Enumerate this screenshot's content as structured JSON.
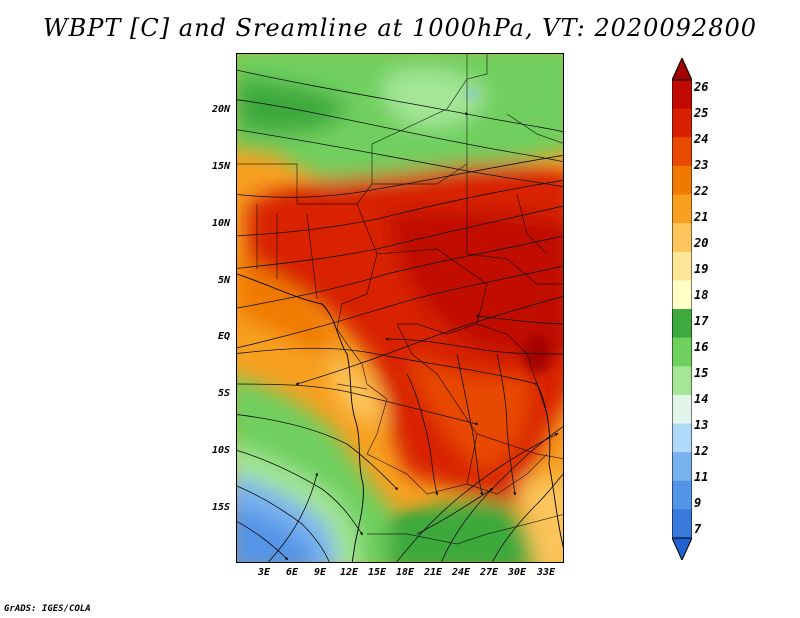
{
  "title": "WBPT [C] and Sreamline at 1000hPa, VT: 2020092800",
  "footer": "GrADS: IGES/COLA",
  "map": {
    "lon_range": [
      0,
      35
    ],
    "lat_range": [
      -21,
      24
    ],
    "lat_ticks": [
      "20N",
      "15N",
      "10N",
      "5N",
      "EQ",
      "5S",
      "10S",
      "15S"
    ],
    "lon_ticks": [
      "3E",
      "6E",
      "9E",
      "12E",
      "15E",
      "18E",
      "21E",
      "24E",
      "27E",
      "30E",
      "33E"
    ]
  },
  "legend": {
    "levels": [
      "26",
      "25",
      "24",
      "23",
      "22",
      "21",
      "20",
      "19",
      "18",
      "17",
      "16",
      "15",
      "14",
      "13",
      "12",
      "11",
      "9",
      "7"
    ],
    "colors": [
      "#a00000",
      "#c00a00",
      "#d82000",
      "#e84a00",
      "#f07a00",
      "#f7a020",
      "#fcc45a",
      "#fde59a",
      "#ffffc8",
      "#3ea93e",
      "#6fcf5f",
      "#a4e696",
      "#e2f5ea",
      "#b0d8f8",
      "#7ab2ef",
      "#5494e6",
      "#3a79dc",
      "#2060d0"
    ]
  }
}
